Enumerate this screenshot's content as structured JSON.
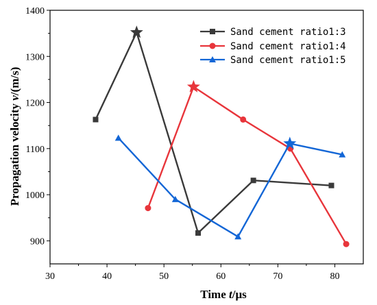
{
  "chart_data": {
    "type": "line",
    "xlabel_parts": [
      "Time ",
      "t",
      "/μs"
    ],
    "ylabel_parts": [
      "Propagation velocity ",
      "v",
      "/(m/s)"
    ],
    "xlim": [
      30,
      85
    ],
    "ylim": [
      850,
      1400
    ],
    "xticks": [
      30,
      40,
      50,
      60,
      70,
      80
    ],
    "yticks": [
      900,
      1000,
      1100,
      1200,
      1300,
      1400
    ],
    "legend_position": "top-right",
    "grid": false,
    "series": [
      {
        "name": "Sand cement ratio1:3",
        "color": "#3a3a3a",
        "marker": "square",
        "points": [
          [
            38,
            1163
          ],
          [
            45.2,
            1352
          ],
          [
            56,
            917
          ],
          [
            65.7,
            1031
          ],
          [
            79.4,
            1020
          ]
        ],
        "peak_index": 1
      },
      {
        "name": "Sand cement ratio1:4",
        "color": "#e8353b",
        "marker": "circle",
        "points": [
          [
            47.2,
            971
          ],
          [
            55.2,
            1234
          ],
          [
            63.9,
            1163
          ],
          [
            72.2,
            1100
          ],
          [
            82,
            893
          ]
        ],
        "peak_index": 1
      },
      {
        "name": "Sand cement ratio1:5",
        "color": "#1366d6",
        "marker": "triangle",
        "points": [
          [
            42,
            1123
          ],
          [
            52,
            990
          ],
          [
            63,
            909
          ],
          [
            72.1,
            1111
          ],
          [
            81.3,
            1087
          ]
        ],
        "peak_index": 3
      }
    ]
  }
}
